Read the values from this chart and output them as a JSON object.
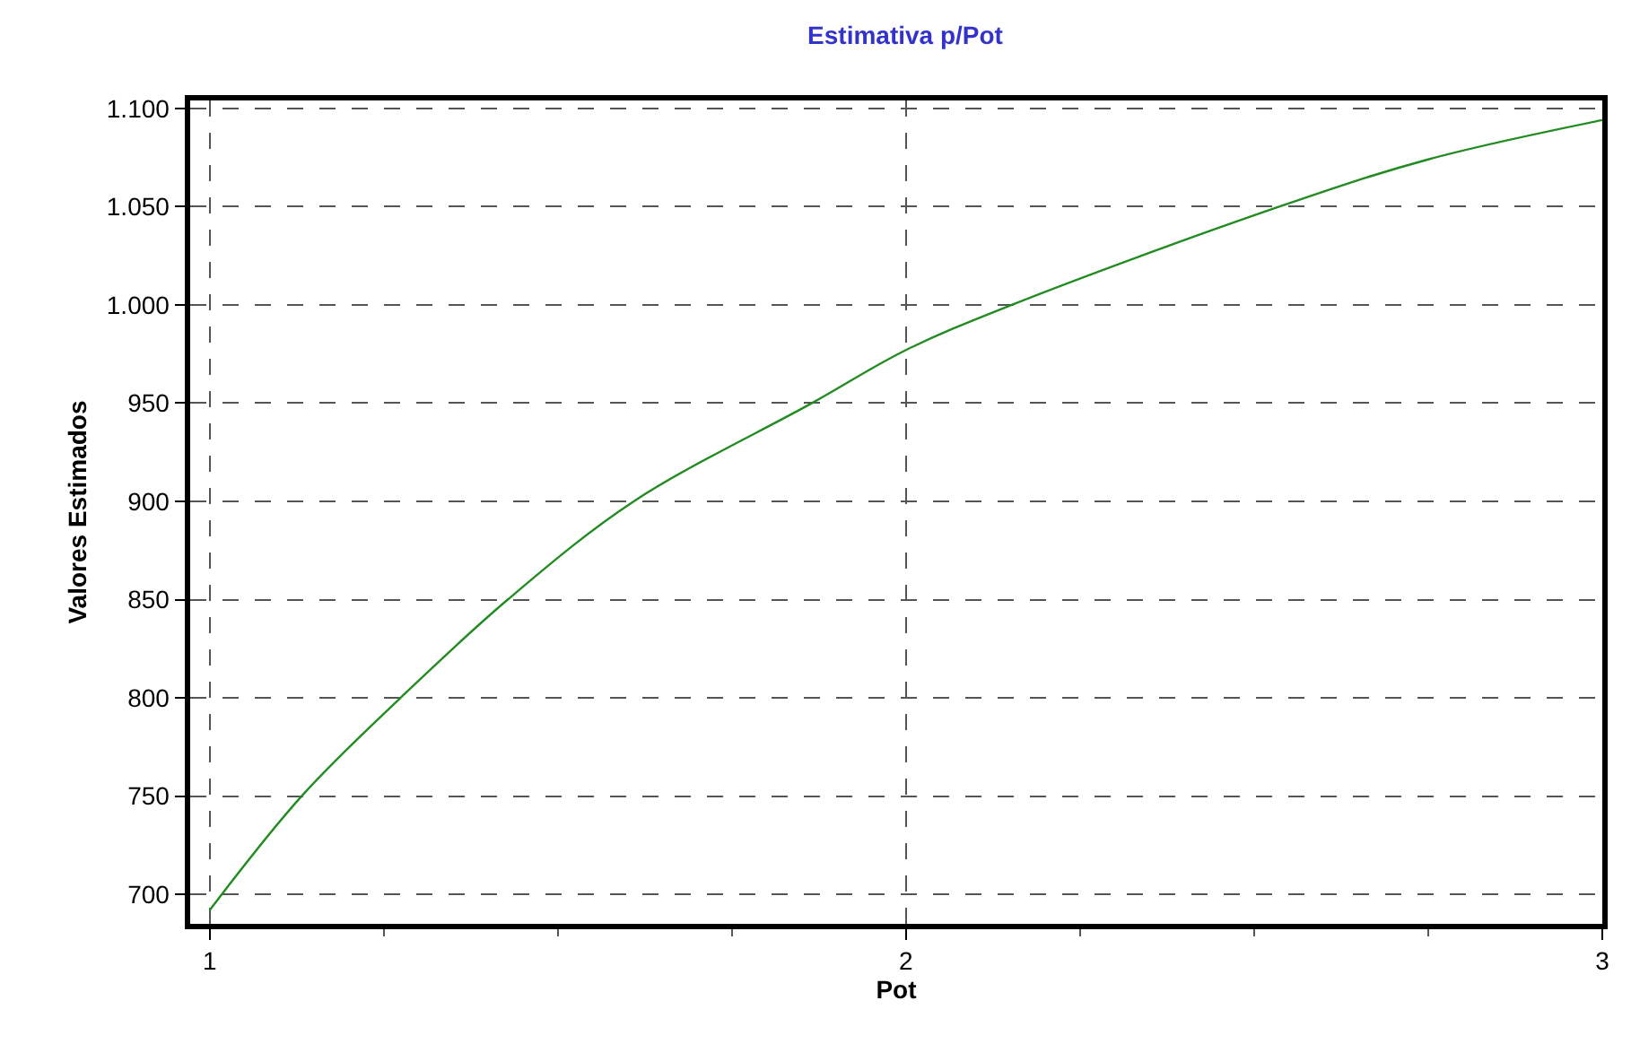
{
  "chart_data": {
    "type": "line",
    "title": "Estimativa p/Pot",
    "xlabel": "Pot",
    "ylabel": "Valores Estimados",
    "x": [
      1,
      1.132,
      1.274,
      1.428,
      1.609,
      1.865,
      2,
      2.152,
      2.536,
      2.75,
      3
    ],
    "series": [
      {
        "color": "#228b22",
        "values": [
          692,
          750,
          800,
          850,
          900,
          950,
          977,
          1000,
          1050,
          1074,
          1094
        ]
      }
    ],
    "xlim": [
      0.972,
      3.0
    ],
    "xticks": [
      1,
      2,
      3
    ],
    "ylim": [
      685,
      1104
    ],
    "yticks": [
      {
        "value": 700,
        "label": "700"
      },
      {
        "value": 750,
        "label": "750"
      },
      {
        "value": 800,
        "label": "800"
      },
      {
        "value": 850,
        "label": "850"
      },
      {
        "value": 900,
        "label": "900"
      },
      {
        "value": 950,
        "label": "950"
      },
      {
        "value": 1000,
        "label": "1.000"
      },
      {
        "value": 1050,
        "label": "1.050"
      },
      {
        "value": 1100,
        "label": "1.100"
      }
    ],
    "grid": true,
    "marker": "none",
    "line_style": "solid"
  }
}
